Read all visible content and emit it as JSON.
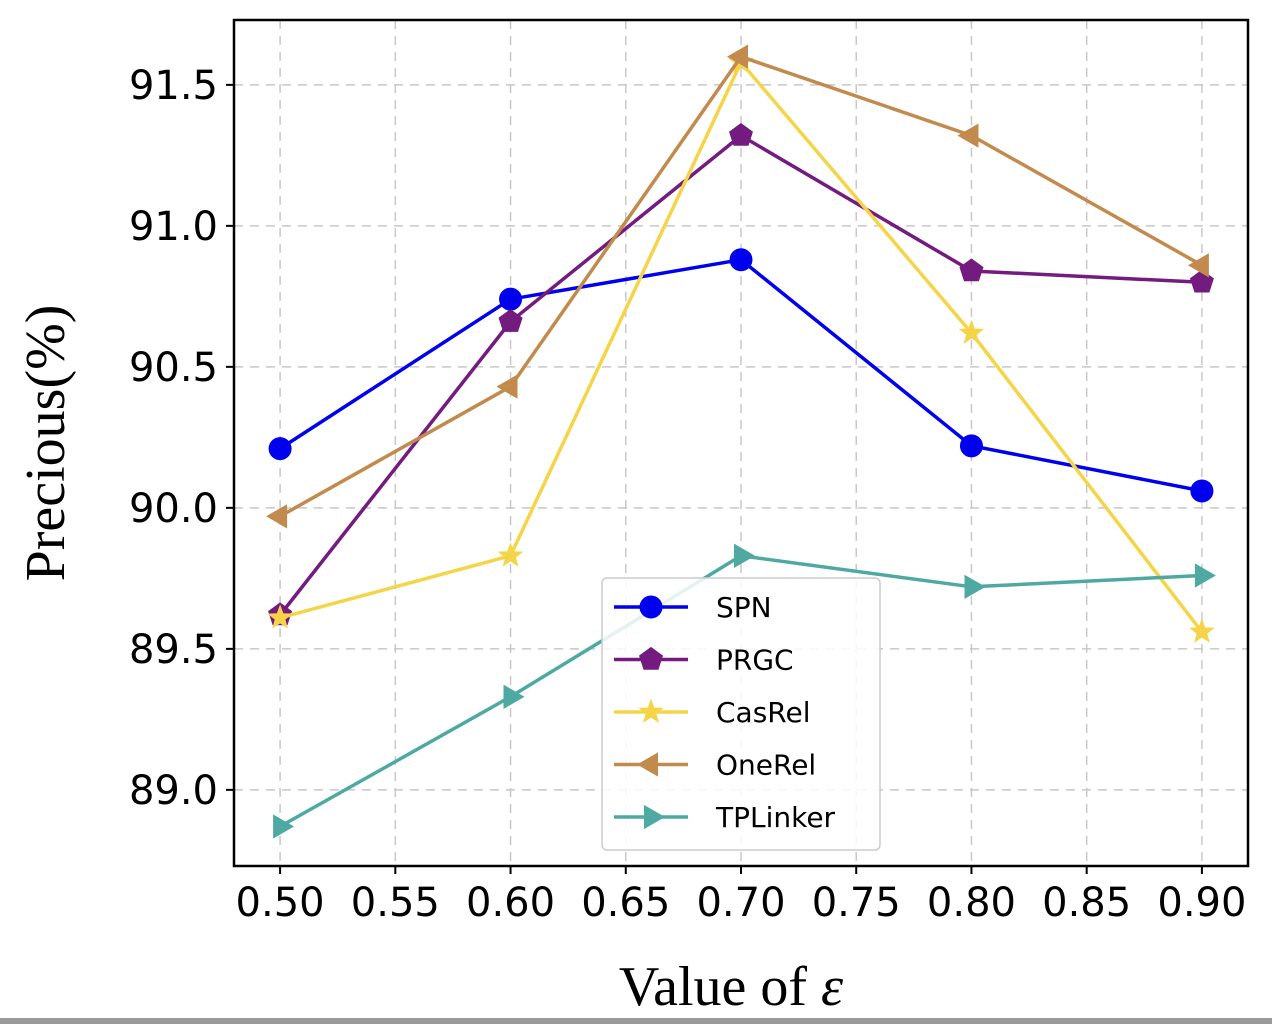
{
  "chart_data": {
    "type": "line",
    "xlabel_prefix": "Value of ",
    "xlabel_symbol": "ε",
    "ylabel": "Precious(%)",
    "x": [
      0.5,
      0.6,
      0.7,
      0.8,
      0.9
    ],
    "xlim": [
      0.48,
      0.92
    ],
    "ylim": [
      88.73,
      91.73
    ],
    "xticks": [
      0.5,
      0.55,
      0.6,
      0.65,
      0.7,
      0.75,
      0.8,
      0.85,
      0.9
    ],
    "xtick_labels": [
      "0.50",
      "0.55",
      "0.60",
      "0.65",
      "0.70",
      "0.75",
      "0.80",
      "0.85",
      "0.90"
    ],
    "yticks": [
      89.0,
      89.5,
      90.0,
      90.5,
      91.0,
      91.5
    ],
    "ytick_labels": [
      "89.0",
      "89.5",
      "90.0",
      "90.5",
      "91.0",
      "91.5"
    ],
    "grid": true,
    "legend_position": "bottom-center",
    "series": [
      {
        "name": "SPN",
        "color": "#0000ee",
        "marker": "circle",
        "values": [
          90.21,
          90.74,
          90.88,
          90.22,
          90.06
        ]
      },
      {
        "name": "PRGC",
        "color": "#731b7f",
        "marker": "pentagon",
        "values": [
          89.62,
          90.66,
          91.32,
          90.84,
          90.8
        ]
      },
      {
        "name": "CasRel",
        "color": "#f5d547",
        "marker": "star",
        "values": [
          89.61,
          89.83,
          91.58,
          90.62,
          89.56
        ]
      },
      {
        "name": "OneRel",
        "color": "#c38a4e",
        "marker": "triangle-left",
        "values": [
          89.97,
          90.43,
          91.6,
          91.32,
          90.86
        ]
      },
      {
        "name": "TPLinker",
        "color": "#4fa9a3",
        "marker": "triangle-right",
        "values": [
          88.87,
          89.33,
          89.83,
          89.72,
          89.76
        ]
      }
    ]
  }
}
